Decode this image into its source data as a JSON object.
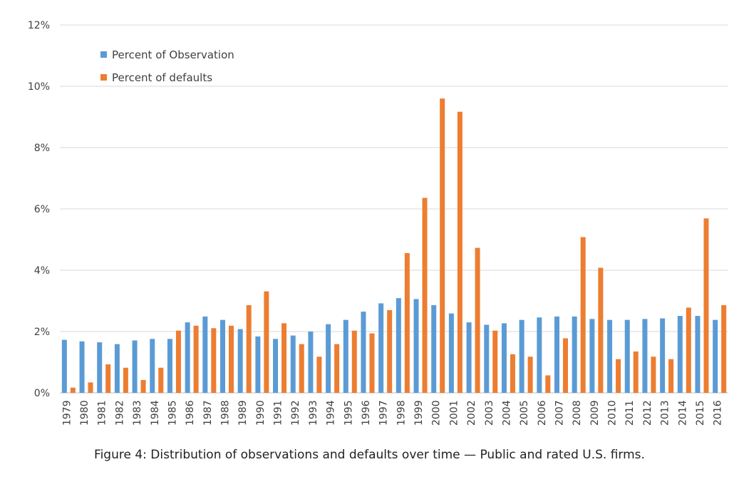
{
  "caption": "Figure 4: Distribution of observations and defaults over time — Public and rated U.S. firms.",
  "chart_data": {
    "type": "bar",
    "title": "",
    "xlabel": "",
    "ylabel": "",
    "ylim": [
      0,
      12
    ],
    "y_ticks": [
      "0%",
      "2%",
      "4%",
      "6%",
      "8%",
      "10%",
      "12%"
    ],
    "y_tick_values": [
      0,
      2,
      4,
      6,
      8,
      10,
      12
    ],
    "grid": "horizontal",
    "legend_position": "top-left",
    "categories": [
      "1979",
      "1980",
      "1981",
      "1982",
      "1983",
      "1984",
      "1985",
      "1986",
      "1987",
      "1988",
      "1989",
      "1990",
      "1991",
      "1992",
      "1993",
      "1994",
      "1995",
      "1996",
      "1997",
      "1998",
      "1999",
      "2000",
      "2001",
      "2002",
      "2003",
      "2004",
      "2005",
      "2006",
      "2007",
      "2008",
      "2009",
      "2010",
      "2011",
      "2012",
      "2013",
      "2014",
      "2015",
      "2016"
    ],
    "series": [
      {
        "name": "Percent of Observation",
        "color": "#5b9bd5",
        "values": [
          1.73,
          1.68,
          1.65,
          1.59,
          1.71,
          1.76,
          1.76,
          2.3,
          2.49,
          2.38,
          2.08,
          1.84,
          1.76,
          1.87,
          2.0,
          2.24,
          2.38,
          2.65,
          2.92,
          3.09,
          3.06,
          2.86,
          2.59,
          2.3,
          2.22,
          2.27,
          2.38,
          2.46,
          2.49,
          2.49,
          2.41,
          2.38,
          2.38,
          2.41,
          2.43,
          2.51,
          2.51,
          2.38
        ]
      },
      {
        "name": "Percent of defaults",
        "color": "#ed7d31",
        "values": [
          0.17,
          0.34,
          0.93,
          0.82,
          0.42,
          0.82,
          2.03,
          2.19,
          2.11,
          2.19,
          2.86,
          3.31,
          2.27,
          1.59,
          1.18,
          1.59,
          2.03,
          1.94,
          2.7,
          4.56,
          6.36,
          9.6,
          9.17,
          4.73,
          2.03,
          1.26,
          1.18,
          0.57,
          1.78,
          5.08,
          4.08,
          1.1,
          1.35,
          1.18,
          1.1,
          2.78,
          5.69,
          2.86
        ]
      }
    ]
  }
}
